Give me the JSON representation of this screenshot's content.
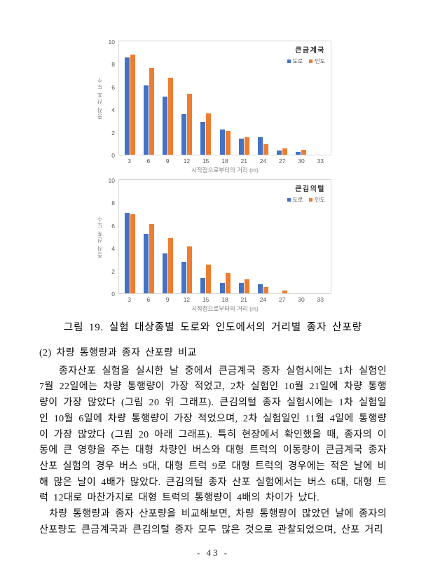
{
  "figure": {
    "caption": "그림 19. 실험 대상종별 도로와 인도에서의 거리별 종자 산포량"
  },
  "chart_data": [
    {
      "type": "bar",
      "title": "큰금계국",
      "categories": [
        "3",
        "6",
        "9",
        "12",
        "15",
        "18",
        "21",
        "24",
        "27",
        "30",
        "33"
      ],
      "series": [
        {
          "name": "도로",
          "color": "#4472C4",
          "values": [
            8.6,
            6.1,
            5.1,
            3.6,
            2.9,
            2.2,
            1.45,
            1.55,
            0.35,
            0.25,
            0
          ]
        },
        {
          "name": "인도",
          "color": "#ED7D31",
          "values": [
            8.8,
            7.65,
            6.8,
            5.35,
            3.65,
            2.1,
            1.55,
            0.9,
            0.55,
            0.45,
            0
          ]
        }
      ],
      "xlabel": "시작점으로부터의 거리 (m)",
      "ylabel": "종자 산포 도수",
      "ylim": [
        0,
        10
      ],
      "yticks": [
        0,
        2,
        4,
        6,
        8,
        10
      ],
      "legend_position": "top-right",
      "grid": false
    },
    {
      "type": "bar",
      "title": "큰김의털",
      "categories": [
        "3",
        "6",
        "9",
        "12",
        "15",
        "18",
        "21",
        "24",
        "27",
        "30",
        "33"
      ],
      "series": [
        {
          "name": "도로",
          "color": "#4472C4",
          "values": [
            7.1,
            5.25,
            3.55,
            2.8,
            1.35,
            0.9,
            0.9,
            0.8,
            0,
            0,
            0
          ]
        },
        {
          "name": "인도",
          "color": "#ED7D31",
          "values": [
            7.0,
            6.1,
            4.9,
            4.15,
            2.55,
            1.8,
            1.25,
            0.55,
            0.25,
            0,
            0
          ]
        }
      ],
      "xlabel": "시작점으로부터의 거리 (m)",
      "ylabel": "종자 산포 도수",
      "ylim": [
        0,
        10
      ],
      "yticks": [
        0,
        2,
        4,
        6,
        8,
        10
      ],
      "legend_position": "top-right",
      "grid": false
    }
  ],
  "body": {
    "section_heading": "(2) 차량 통행량과 종자 산포량 비교",
    "paragraphs": [
      "종자산포 실험을 실시한 날 중에서 큰금계국 종자 실험시에는 1차 실험인 7월 22일에는 차량 통행량이 가장 적었고, 2차 실험인 10월 21일에 차량 통행량이 가장 많았다 (그림 20 위 그래프). 큰김의털 종자 실험시에는 1차 실험일인 10월 6일에 차량 통행량이 가장 적었으며, 2차 실험일인 11월 4일에 통행량이 가장 많았다 (그림 20 아래 그래프). 특히 현장에서 확인했을 때, 종자의 이동에 큰 영향을 주는 대형 차량인 버스와 대형 트럭의 이동량이 큰금계국 종자 산포 실험의 경우 버스 9대, 대형 트럭 9로 대형 트럭의 경우에는 적은 날에 비해 많은 날이 4배가 많았다. 큰김의털 종자 산포 실험에서는 버스 6대, 대형 트럭 12대로 마찬가지로 대형 트럭의 통행량이 4배의 차이가 났다.",
      "차량 통행량과 종자 산포량을 비교해보면, 차량 통행량이 많았던 날에 종자의 산포량도 큰금계국과 큰김의털 종자 모두 많은 것으로 관찰되었으며, 산포 거리"
    ]
  },
  "page": {
    "number_label": "- 43 -"
  }
}
